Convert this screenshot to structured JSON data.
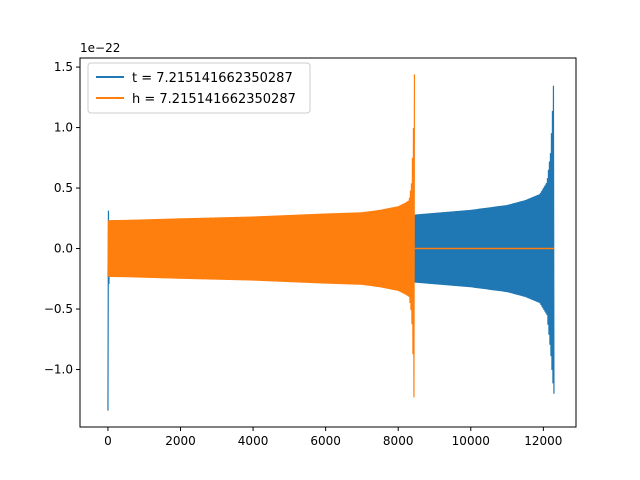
{
  "chart_data": {
    "type": "line",
    "title": "",
    "xlabel": "",
    "ylabel": "",
    "y_offset_label": "1e−22",
    "xlim": [
      -770,
      12900
    ],
    "ylim": [
      -1.475,
      1.575
    ],
    "x_ticks": [
      0,
      2000,
      4000,
      6000,
      8000,
      10000,
      12000
    ],
    "x_tick_labels": [
      "0",
      "2000",
      "4000",
      "6000",
      "8000",
      "10000",
      "12000"
    ],
    "y_ticks": [
      -1.0,
      -0.5,
      0.0,
      0.5,
      1.0,
      1.5
    ],
    "y_tick_labels": [
      "−1.0",
      "−0.5",
      "0.0",
      "0.5",
      "1.0",
      "1.5"
    ],
    "grid": false,
    "legend_position": "upper-left",
    "series": [
      {
        "name": "t = 7.215141662350287",
        "color": "#1f77b4",
        "envelope_x": [
          0,
          30,
          500,
          2000,
          4000,
          6000,
          8000,
          10000,
          11000,
          11500,
          11900,
          12100,
          12200,
          12260,
          12290,
          12300
        ],
        "envelope_upper": [
          0.41,
          0.2,
          0.205,
          0.215,
          0.225,
          0.24,
          0.27,
          0.32,
          0.36,
          0.4,
          0.45,
          0.55,
          0.8,
          1.2,
          1.44,
          1.44
        ],
        "envelope_lower": [
          -1.34,
          -0.2,
          -0.205,
          -0.215,
          -0.225,
          -0.24,
          -0.27,
          -0.32,
          -0.36,
          -0.4,
          -0.45,
          -0.55,
          -0.85,
          -1.1,
          -1.2,
          -1.2
        ]
      },
      {
        "name": "h = 7.215141662350287",
        "color": "#ff7f0e",
        "envelope_x": [
          0,
          30,
          500,
          2000,
          4000,
          6000,
          7000,
          7500,
          8000,
          8200,
          8300,
          8370,
          8420,
          8440,
          8460
        ],
        "envelope_upper": [
          0.23,
          0.235,
          0.237,
          0.25,
          0.265,
          0.29,
          0.3,
          0.32,
          0.35,
          0.38,
          0.4,
          0.55,
          1.0,
          1.44,
          1.44
        ],
        "envelope_lower": [
          -0.23,
          -0.235,
          -0.237,
          -0.25,
          -0.265,
          -0.29,
          -0.3,
          -0.32,
          -0.35,
          -0.38,
          -0.4,
          -0.55,
          -1.0,
          -1.34,
          -1.34
        ],
        "tail_x": [
          8460,
          12300
        ],
        "tail_y": [
          0.0,
          0.0
        ]
      }
    ]
  }
}
